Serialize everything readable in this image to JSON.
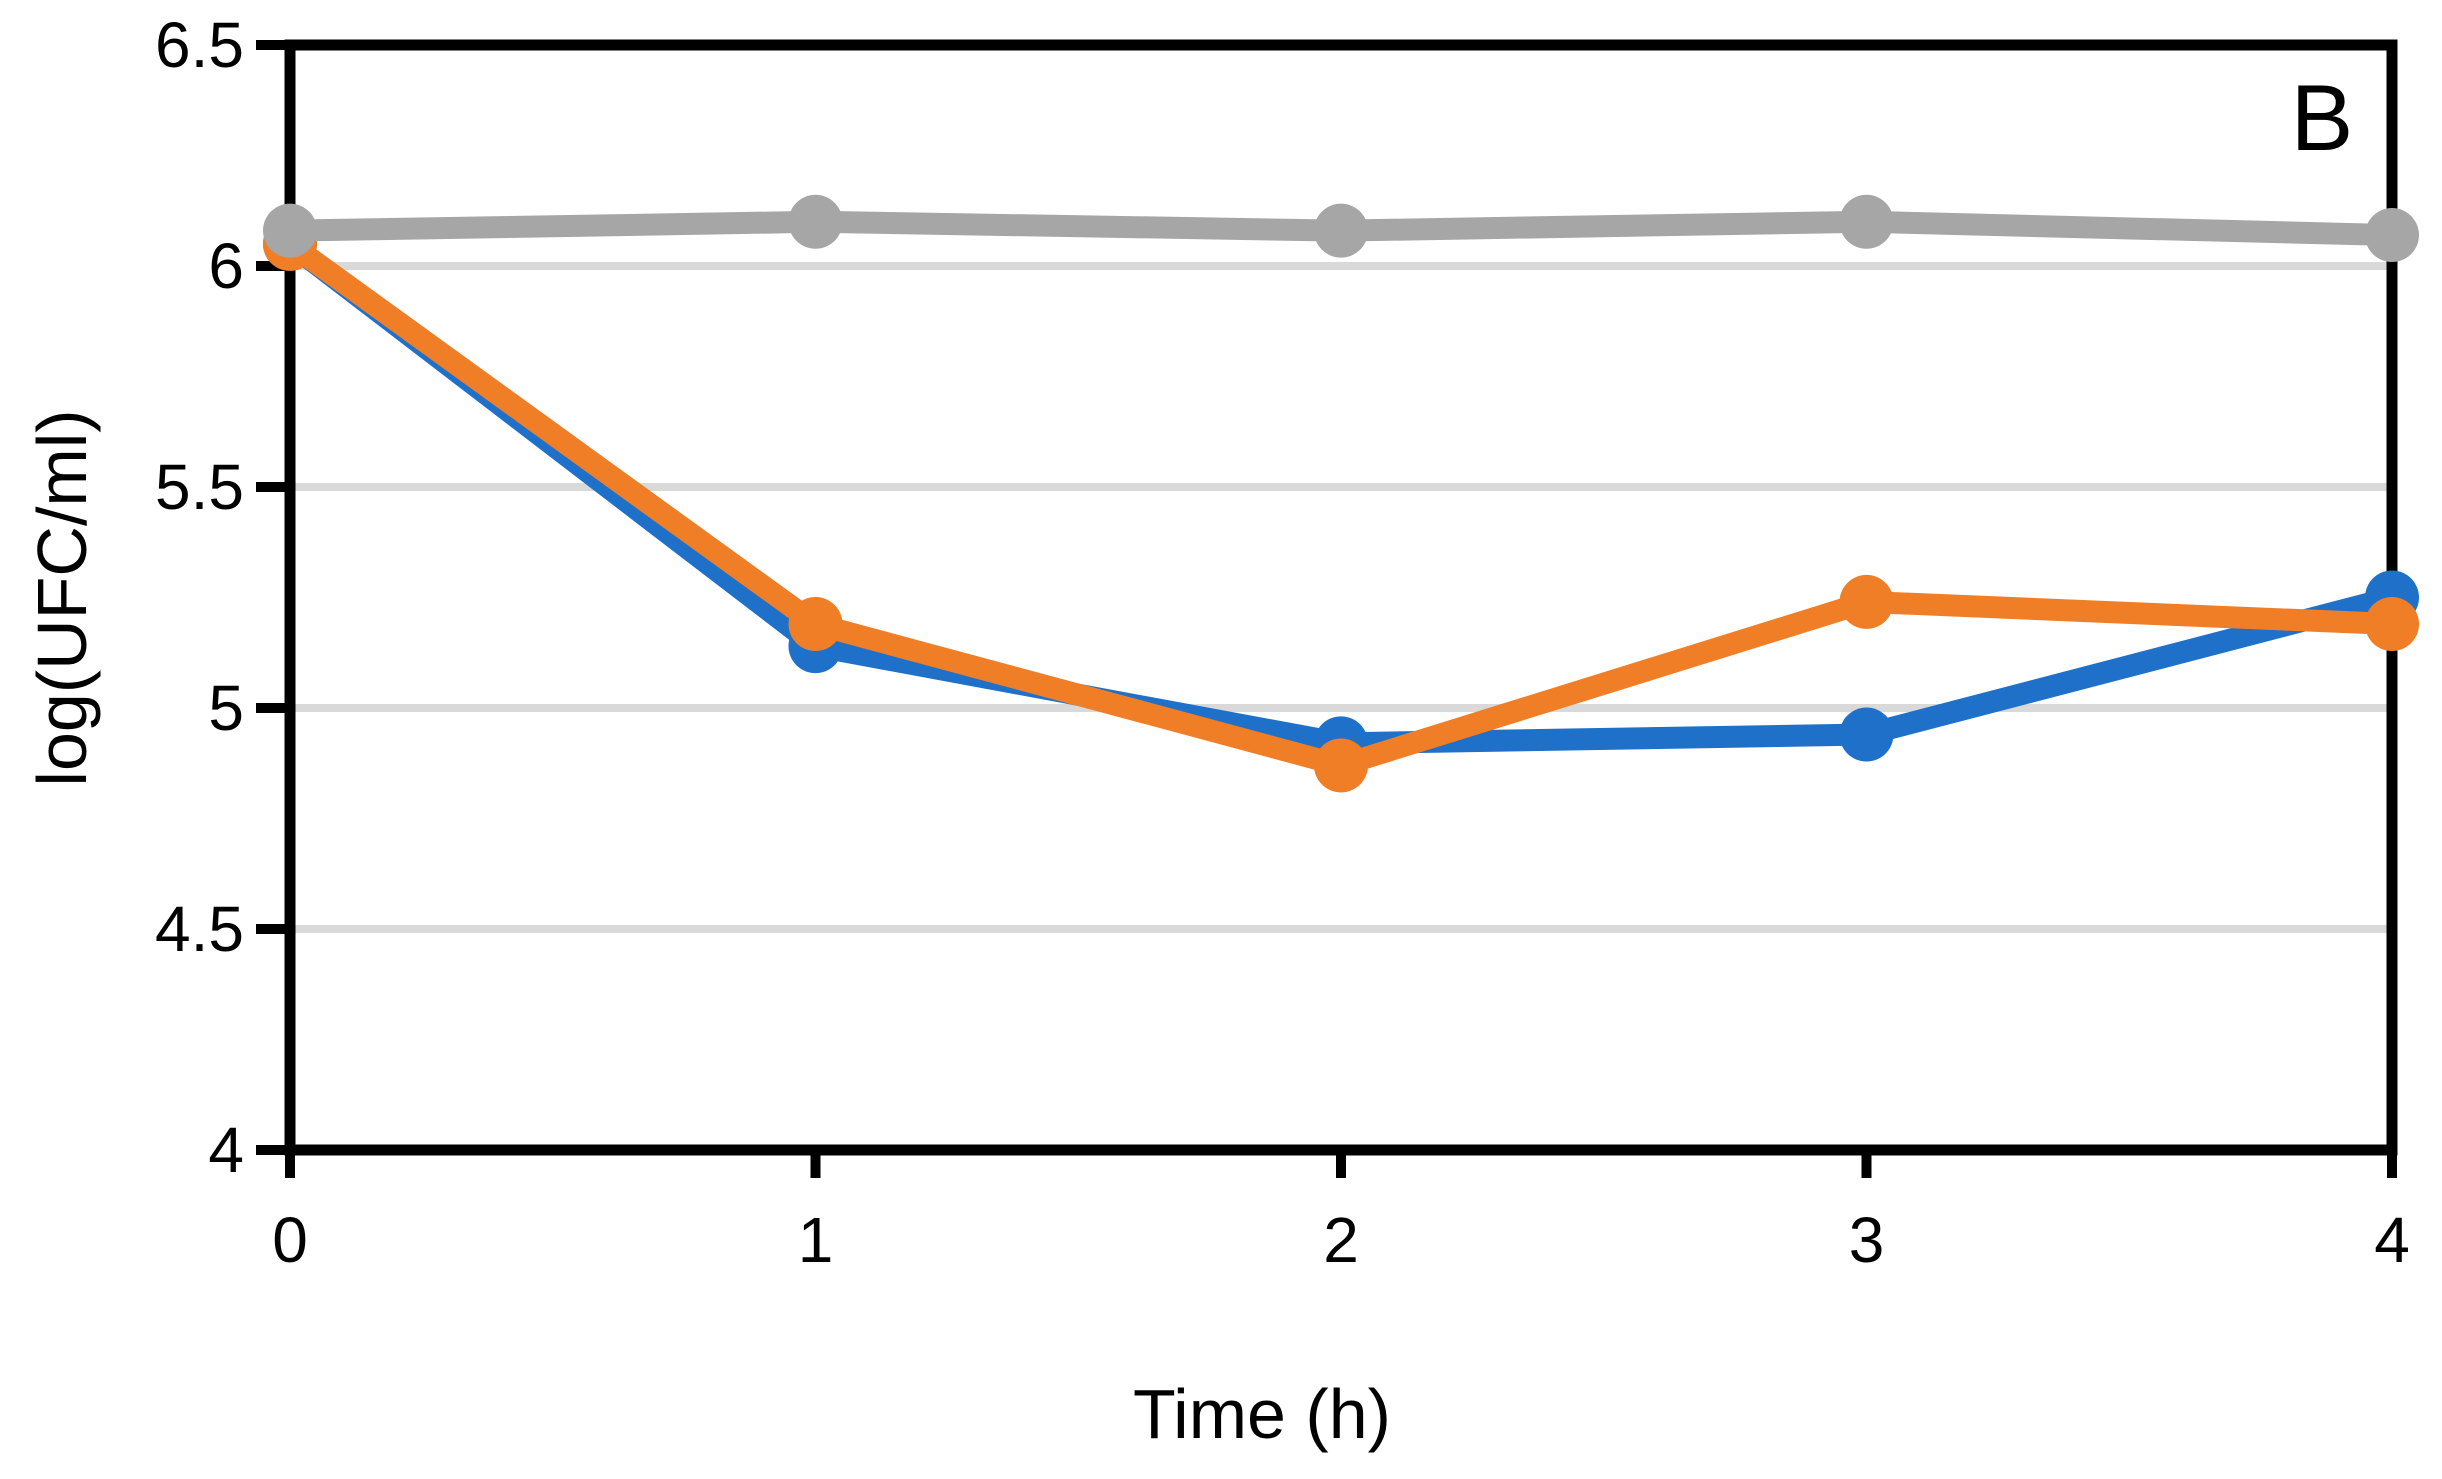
{
  "chart_data": {
    "type": "line",
    "panel_label": "B",
    "title": "",
    "xlabel": "Time (h)",
    "ylabel": "log(UFC/ml)",
    "x": [
      0,
      1,
      2,
      3,
      4
    ],
    "xlim": [
      0,
      4
    ],
    "ylim": [
      4,
      6.5
    ],
    "xticks": [
      0,
      1,
      2,
      3,
      4
    ],
    "xtick_labels": [
      "0",
      "1",
      "2",
      "3",
      "4"
    ],
    "yticks": [
      4,
      4.5,
      5,
      5.5,
      6,
      6.5
    ],
    "ytick_labels": [
      "4",
      "4.5",
      "5",
      "5.5",
      "6",
      "6.5"
    ],
    "grid": "horizontal",
    "legend": "none",
    "series": [
      {
        "name": "blue-series",
        "color": "#1F70C8",
        "marker": "circle",
        "values": [
          6.05,
          5.14,
          4.92,
          4.94,
          5.25
        ]
      },
      {
        "name": "orange-series",
        "color": "#F07E27",
        "marker": "circle",
        "values": [
          6.05,
          5.19,
          4.87,
          5.24,
          5.19
        ]
      },
      {
        "name": "gray-series",
        "color": "#A6A6A6",
        "marker": "circle",
        "values": [
          6.08,
          6.1,
          6.08,
          6.1,
          6.07
        ]
      }
    ],
    "colors": {
      "axis": "#000000",
      "gridline": "#D9D9D9",
      "background": "#FFFFFF"
    }
  }
}
